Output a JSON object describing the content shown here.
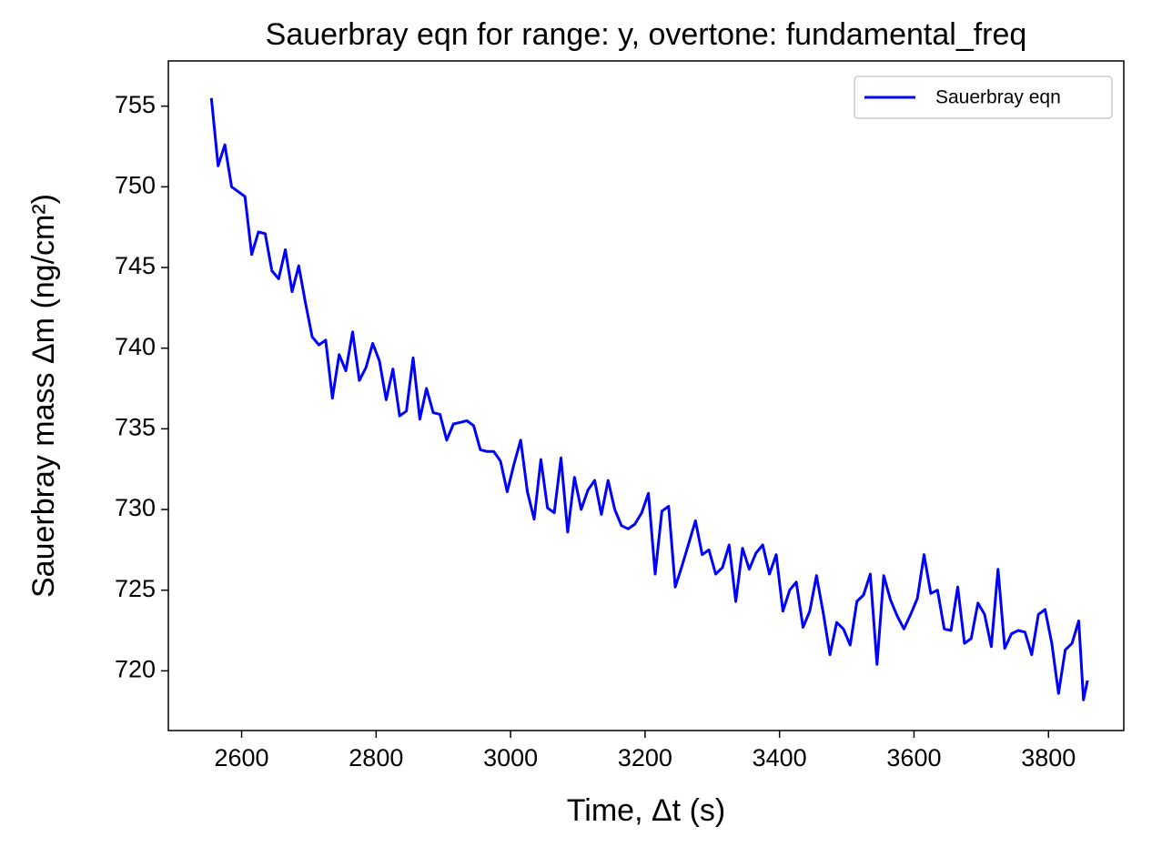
{
  "chart_data": {
    "type": "line",
    "title": "Sauerbray eqn for range: y, overtone: fundamental_freq",
    "xlabel": "Time, Δt (s)",
    "ylabel": "Sauerbray mass Δm (ng/cm²)",
    "x": [
      2555,
      2565,
      2575,
      2585,
      2595,
      2605,
      2615,
      2625,
      2635,
      2645,
      2655,
      2665,
      2675,
      2685,
      2695,
      2705,
      2715,
      2725,
      2735,
      2745,
      2755,
      2765,
      2775,
      2785,
      2795,
      2805,
      2815,
      2825,
      2835,
      2845,
      2855,
      2865,
      2875,
      2885,
      2895,
      2905,
      2915,
      2925,
      2935,
      2945,
      2955,
      2965,
      2975,
      2985,
      2995,
      3005,
      3015,
      3025,
      3035,
      3045,
      3055,
      3065,
      3075,
      3085,
      3095,
      3105,
      3115,
      3125,
      3135,
      3145,
      3155,
      3165,
      3175,
      3185,
      3195,
      3205,
      3215,
      3225,
      3235,
      3245,
      3255,
      3265,
      3275,
      3285,
      3295,
      3305,
      3315,
      3325,
      3335,
      3345,
      3355,
      3365,
      3375,
      3385,
      3395,
      3405,
      3415,
      3425,
      3435,
      3445,
      3455,
      3465,
      3475,
      3485,
      3495,
      3505,
      3515,
      3525,
      3535,
      3545,
      3555,
      3565,
      3575,
      3585,
      3595,
      3605,
      3615,
      3625,
      3635,
      3645,
      3655,
      3665,
      3675,
      3685,
      3695,
      3705,
      3715,
      3725,
      3735,
      3745,
      3755,
      3765,
      3775,
      3785,
      3795,
      3805,
      3815,
      3825,
      3835,
      3845,
      3852,
      3858
    ],
    "series": [
      {
        "name": "Sauerbray eqn",
        "color": "#0000ff",
        "values": [
          755.5,
          751.3,
          752.6,
          750,
          749.7,
          749.4,
          745.8,
          747.2,
          747.1,
          744.8,
          744.3,
          746.1,
          743.5,
          745.1,
          742.8,
          740.7,
          740.2,
          740.5,
          736.9,
          739.6,
          738.6,
          741.0,
          738.0,
          738.8,
          740.3,
          739.2,
          736.8,
          738.7,
          735.8,
          736.1,
          739.4,
          735.6,
          737.5,
          736.0,
          735.9,
          734.3,
          735.3,
          735.4,
          735.5,
          735.2,
          733.7,
          733.6,
          733.6,
          733.0,
          731.1,
          732.8,
          734.3,
          731.1,
          729.4,
          733.1,
          730.1,
          729.8,
          733.2,
          728.6,
          732.0,
          730.0,
          731.2,
          731.8,
          729.7,
          731.8,
          730.0,
          729.0,
          728.8,
          729.1,
          729.8,
          731.0,
          726.0,
          729.9,
          730.2,
          725.2,
          726.5,
          727.9,
          729.3,
          727.2,
          727.5,
          726.0,
          726.4,
          727.8,
          724.3,
          727.6,
          726.3,
          727.3,
          727.8,
          726.0,
          727.2,
          723.7,
          725.0,
          725.5,
          722.7,
          723.7,
          725.9,
          723.6,
          721.0,
          723.0,
          722.6,
          721.6,
          724.3,
          724.7,
          726.0,
          720.4,
          725.9,
          724.4,
          723.4,
          722.6,
          723.5,
          724.5,
          727.2,
          724.8,
          725.0,
          722.6,
          722.5,
          725.2,
          721.7,
          722.0,
          724.2,
          723.5,
          721.5,
          726.3,
          721.4,
          722.3,
          722.5,
          722.4,
          721.0,
          723.5,
          723.8,
          721.7,
          718.6,
          721.3,
          721.7,
          723.1,
          718.2,
          719.4
        ]
      }
    ],
    "xlim": [
      2491,
      3912
    ],
    "xticks": [
      2600,
      2800,
      3000,
      3200,
      3400,
      3600,
      3800
    ],
    "ylim": [
      716.3,
      757.8
    ],
    "yticks": [
      720,
      725,
      730,
      735,
      740,
      745,
      750,
      755
    ],
    "legend": "upper right"
  }
}
